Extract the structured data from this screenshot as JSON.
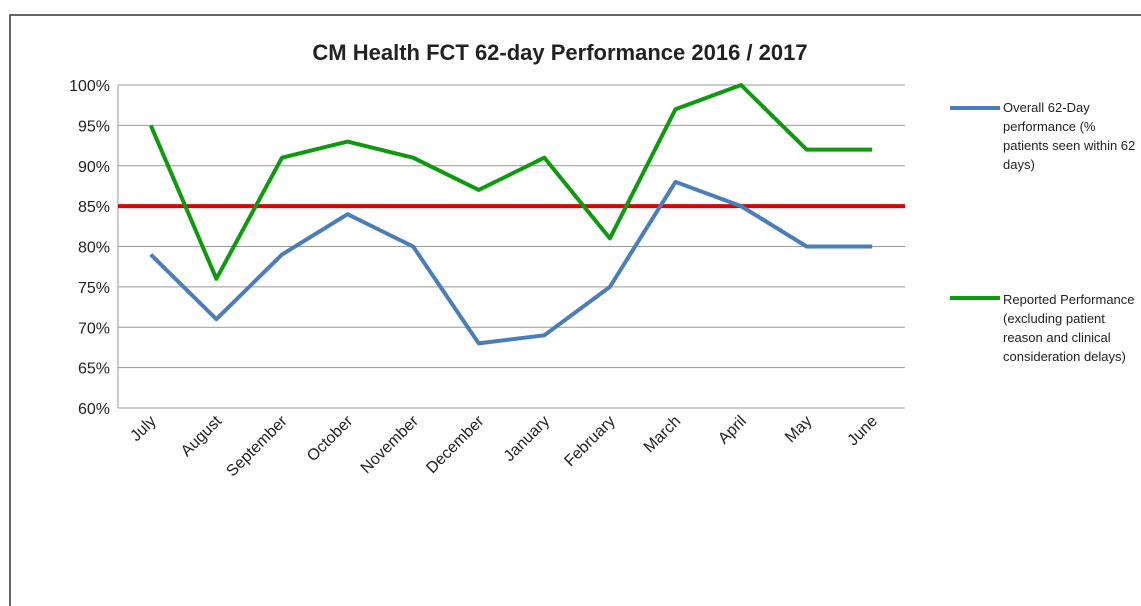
{
  "chart_data": {
    "type": "line",
    "title": "CM Health FCT 62-day Performance 2016 / 2017",
    "categories": [
      "July",
      "August",
      "September",
      "October",
      "November",
      "December",
      "January",
      "February",
      "March",
      "April",
      "May",
      "June"
    ],
    "series": [
      {
        "name": "Overall 62-Day performance (% patients seen within 62 days)",
        "color": "#4a7ebb",
        "values": [
          79,
          71,
          79,
          84,
          80,
          68,
          69,
          75,
          88,
          85,
          80,
          80
        ]
      },
      {
        "name": "Reported Performance (excluding patient reason and clinical consideration delays)",
        "color": "#0e9a0e",
        "values": [
          95,
          76,
          91,
          93,
          91,
          87,
          91,
          81,
          97,
          100,
          92,
          92
        ]
      }
    ],
    "reference_line": {
      "value": 85,
      "color": "#e00000"
    },
    "ylim": [
      60,
      100
    ],
    "yticks": [
      {
        "value": 60,
        "label": "60%"
      },
      {
        "value": 65,
        "label": "65%"
      },
      {
        "value": 70,
        "label": "70%"
      },
      {
        "value": 75,
        "label": "75%"
      },
      {
        "value": 80,
        "label": "80%"
      },
      {
        "value": 85,
        "label": "85%"
      },
      {
        "value": 90,
        "label": "90%"
      },
      {
        "value": 95,
        "label": "95%"
      },
      {
        "value": 100,
        "label": "100%"
      }
    ],
    "grid": true,
    "legend": "right"
  }
}
